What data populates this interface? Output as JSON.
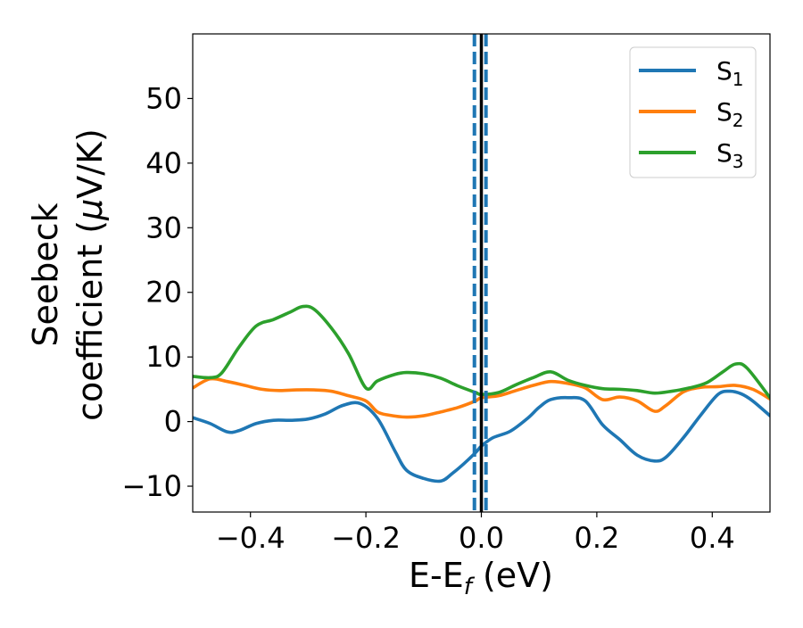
{
  "chart_data": {
    "type": "line",
    "title": "",
    "xlabel": "E-E",
    "xlabel_subscript": "f",
    "xlabel_unit": " (eV)",
    "ylabel_line1": "Seebeck",
    "ylabel_line2": "coefficient  (",
    "ylabel_mu": "μ",
    "ylabel_unit": "V/K)",
    "xlim": [
      -0.5,
      0.5
    ],
    "ylim": [
      -14,
      60
    ],
    "xticks": [
      -0.4,
      -0.2,
      0.0,
      0.2,
      0.4
    ],
    "xtick_labels": [
      "−0.4",
      "−0.2",
      "0.0",
      "0.2",
      "0.4"
    ],
    "yticks": [
      -10,
      0,
      10,
      20,
      30,
      40,
      50
    ],
    "ytick_labels": [
      "−10",
      "0",
      "10",
      "20",
      "30",
      "40",
      "50"
    ],
    "grid": false,
    "legend_position": "top-right",
    "vertical_lines": [
      {
        "x": -0.012,
        "style": "dashed",
        "color": "#1f77b4"
      },
      {
        "x": 0.008,
        "style": "dashed",
        "color": "#1f77b4"
      },
      {
        "x": 0.0,
        "style": "solid",
        "color": "#000000"
      }
    ],
    "series": [
      {
        "name": "S",
        "subscript": "1",
        "color": "#1f77b4",
        "x": [
          -0.5,
          -0.47,
          -0.44,
          -0.42,
          -0.39,
          -0.36,
          -0.33,
          -0.3,
          -0.27,
          -0.24,
          -0.21,
          -0.18,
          -0.15,
          -0.13,
          -0.1,
          -0.07,
          -0.05,
          -0.03,
          -0.01,
          0.0,
          0.02,
          0.05,
          0.08,
          0.1,
          0.12,
          0.15,
          0.18,
          0.21,
          0.24,
          0.27,
          0.3,
          0.32,
          0.35,
          0.38,
          0.41,
          0.43,
          0.45,
          0.47,
          0.5
        ],
        "y": [
          0.6,
          -0.3,
          -1.6,
          -1.4,
          -0.3,
          0.2,
          0.2,
          0.4,
          1.2,
          2.5,
          2.8,
          0.5,
          -4.5,
          -7.5,
          -8.8,
          -9.2,
          -8.0,
          -6.5,
          -4.8,
          -3.8,
          -2.5,
          -1.5,
          0.5,
          2.2,
          3.4,
          3.7,
          3.2,
          -0.5,
          -2.8,
          -5.2,
          -6.1,
          -5.5,
          -2.5,
          1.0,
          4.2,
          4.7,
          4.3,
          3.2,
          0.9
        ]
      },
      {
        "name": "S",
        "subscript": "2",
        "color": "#ff7f0e",
        "x": [
          -0.5,
          -0.47,
          -0.44,
          -0.41,
          -0.38,
          -0.35,
          -0.32,
          -0.29,
          -0.26,
          -0.23,
          -0.2,
          -0.18,
          -0.16,
          -0.13,
          -0.1,
          -0.07,
          -0.04,
          -0.01,
          0.0,
          0.03,
          0.06,
          0.09,
          0.12,
          0.15,
          0.18,
          0.21,
          0.24,
          0.27,
          0.3,
          0.32,
          0.35,
          0.38,
          0.41,
          0.44,
          0.47,
          0.5
        ],
        "y": [
          5.2,
          6.6,
          6.2,
          5.6,
          5.0,
          4.8,
          4.9,
          4.9,
          4.7,
          4.0,
          3.2,
          1.5,
          1.0,
          0.7,
          0.9,
          1.5,
          2.2,
          3.2,
          3.7,
          4.0,
          4.8,
          5.6,
          6.2,
          5.9,
          5.2,
          3.4,
          3.8,
          3.2,
          1.6,
          2.5,
          4.6,
          5.3,
          5.4,
          5.6,
          5.0,
          3.5
        ]
      },
      {
        "name": "S",
        "subscript": "3",
        "color": "#2ca02c",
        "x": [
          -0.5,
          -0.47,
          -0.45,
          -0.42,
          -0.39,
          -0.36,
          -0.33,
          -0.31,
          -0.29,
          -0.26,
          -0.23,
          -0.2,
          -0.18,
          -0.15,
          -0.13,
          -0.1,
          -0.07,
          -0.04,
          -0.01,
          0.0,
          0.03,
          0.06,
          0.09,
          0.12,
          0.15,
          0.18,
          0.21,
          0.24,
          0.27,
          0.3,
          0.33,
          0.36,
          0.39,
          0.42,
          0.44,
          0.46,
          0.5
        ],
        "y": [
          7.0,
          6.8,
          7.5,
          11.5,
          14.8,
          15.8,
          17.0,
          17.8,
          17.4,
          14.5,
          10.5,
          5.2,
          6.3,
          7.3,
          7.6,
          7.4,
          6.7,
          5.5,
          4.5,
          4.2,
          4.5,
          5.7,
          6.8,
          7.7,
          6.4,
          5.6,
          5.1,
          5.0,
          4.8,
          4.4,
          4.7,
          5.2,
          6.0,
          7.8,
          8.9,
          8.3,
          3.7
        ]
      }
    ]
  }
}
